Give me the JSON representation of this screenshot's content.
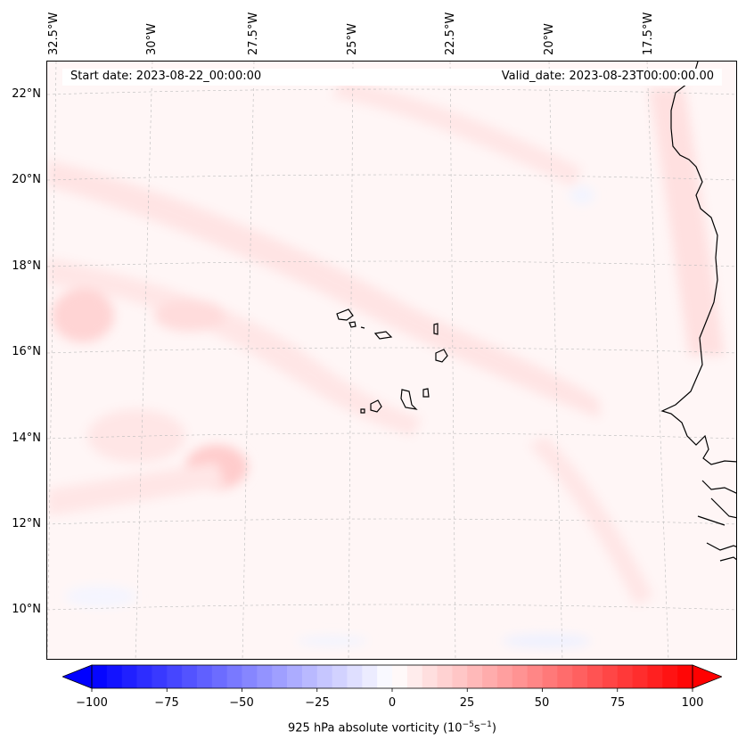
{
  "map": {
    "start_date": "Start date: 2023-08-22_00:00:00",
    "valid_date": "Valid_date: 2023-08-23T00:00:00.00",
    "lon_labels": [
      "32.5°W",
      "30°W",
      "27.5°W",
      "25°W",
      "22.5°W",
      "20°W",
      "17.5°W"
    ],
    "lat_labels": [
      "22°N",
      "20°N",
      "18°N",
      "16°N",
      "14°N",
      "12°N",
      "10°N"
    ],
    "variable": "925 hPa absolute vorticity",
    "units_prefix": "(10",
    "units_exp1": "−5",
    "units_mid": "s",
    "units_exp2": "−1",
    "units_suffix": ")"
  },
  "colorbar": {
    "ticks": [
      "−100",
      "−75",
      "−50",
      "−25",
      "0",
      "25",
      "50",
      "75",
      "100"
    ],
    "min": -100,
    "max": 100,
    "low_color": "#0000ff",
    "mid_color": "#ffffff",
    "high_color": "#ff0000",
    "levels": 40
  },
  "colors": {
    "background_field": "#fff6f6",
    "positive_light": "#ffe2e2",
    "positive_mid": "#ffcccc",
    "negative_light": "#f2f4ff",
    "coastline": "#000000",
    "gridline": "#bbbbbb"
  }
}
